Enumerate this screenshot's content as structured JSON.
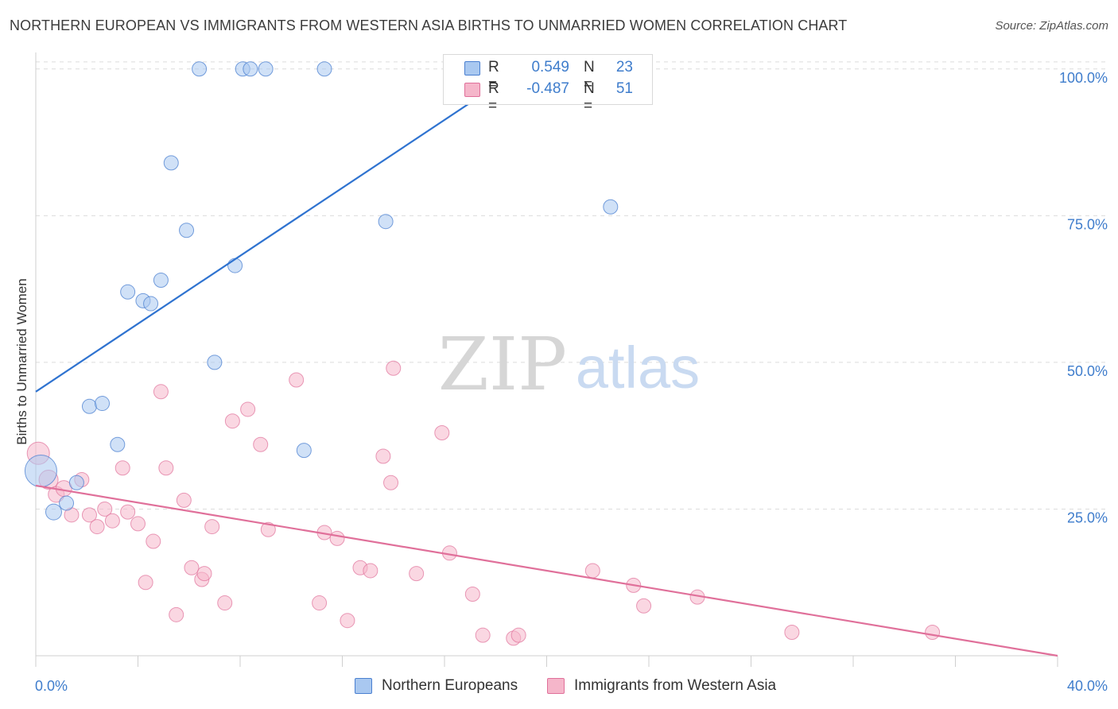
{
  "title": "NORTHERN EUROPEAN VS IMMIGRANTS FROM WESTERN ASIA BIRTHS TO UNMARRIED WOMEN CORRELATION CHART",
  "source": "Source: ZipAtlas.com",
  "watermark": {
    "zip": "ZIP",
    "atlas": "atlas"
  },
  "colors": {
    "blue": "#4a7fd0",
    "blue_fill": "#a9c8f0",
    "pink": "#e0709a",
    "pink_fill": "#f5b6ca",
    "value_text": "#3f7dcc"
  },
  "legend_top": {
    "rows": [
      {
        "r_label": "R =",
        "r_value": "0.549",
        "n_label": "N =",
        "n_value": "23"
      },
      {
        "r_label": "R =",
        "r_value": "-0.487",
        "n_label": "N =",
        "n_value": "51"
      }
    ]
  },
  "legend_bottom": [
    "Northern Europeans",
    "Immigrants from Western Asia"
  ],
  "chart_data": {
    "type": "scatter",
    "ylabel": "Births to Unmarried Women",
    "xlim": [
      0,
      40
    ],
    "ylim": [
      0,
      102
    ],
    "x_tick_labels": [
      "0.0%",
      "40.0%"
    ],
    "y_ticks": [
      25,
      50,
      75,
      100
    ],
    "y_tick_labels": [
      "25.0%",
      "50.0%",
      "75.0%",
      "100.0%"
    ],
    "grid": "horizontal dashed",
    "series": [
      {
        "name": "Northern Europeans",
        "color": "#4a7fd0",
        "trend": {
          "x": [
            0,
            19.0
          ],
          "y": [
            45,
            100
          ]
        },
        "points": [
          [
            0.2,
            31.5,
            20
          ],
          [
            0.7,
            24.5,
            10
          ],
          [
            1.2,
            26.0,
            9
          ],
          [
            1.6,
            29.5,
            9
          ],
          [
            2.1,
            42.5,
            9
          ],
          [
            2.6,
            43.0,
            9
          ],
          [
            3.2,
            36.0,
            9
          ],
          [
            3.6,
            62.0,
            9
          ],
          [
            4.2,
            60.5,
            9
          ],
          [
            4.5,
            60.0,
            9
          ],
          [
            4.9,
            64.0,
            9
          ],
          [
            5.3,
            84.0,
            9
          ],
          [
            5.9,
            72.5,
            9
          ],
          [
            6.4,
            100,
            9
          ],
          [
            7.0,
            50.0,
            9
          ],
          [
            7.8,
            66.5,
            9
          ],
          [
            8.1,
            100,
            9
          ],
          [
            8.4,
            100,
            9
          ],
          [
            9.0,
            100,
            9
          ],
          [
            10.5,
            35.0,
            9
          ],
          [
            11.3,
            100,
            9
          ],
          [
            13.7,
            74.0,
            9
          ],
          [
            22.5,
            76.5,
            9
          ]
        ]
      },
      {
        "name": "Immigrants from Western Asia",
        "color": "#e0709a",
        "trend": {
          "x": [
            0,
            40
          ],
          "y": [
            29,
            0
          ]
        },
        "points": [
          [
            0.1,
            34.5,
            14
          ],
          [
            0.5,
            30.0,
            12
          ],
          [
            0.8,
            27.5,
            10
          ],
          [
            1.1,
            28.5,
            10
          ],
          [
            1.4,
            24.0,
            9
          ],
          [
            1.8,
            30.0,
            9
          ],
          [
            2.1,
            24.0,
            9
          ],
          [
            2.4,
            22.0,
            9
          ],
          [
            2.7,
            25.0,
            9
          ],
          [
            3.0,
            23.0,
            9
          ],
          [
            3.4,
            32.0,
            9
          ],
          [
            3.6,
            24.5,
            9
          ],
          [
            4.0,
            22.5,
            9
          ],
          [
            4.3,
            12.5,
            9
          ],
          [
            4.6,
            19.5,
            9
          ],
          [
            4.9,
            45.0,
            9
          ],
          [
            5.1,
            32.0,
            9
          ],
          [
            5.5,
            7.0,
            9
          ],
          [
            5.8,
            26.5,
            9
          ],
          [
            6.1,
            15.0,
            9
          ],
          [
            6.5,
            13.0,
            9
          ],
          [
            6.6,
            14.0,
            9
          ],
          [
            6.9,
            22.0,
            9
          ],
          [
            7.4,
            9.0,
            9
          ],
          [
            7.7,
            40.0,
            9
          ],
          [
            8.3,
            42.0,
            9
          ],
          [
            8.8,
            36.0,
            9
          ],
          [
            9.1,
            21.5,
            9
          ],
          [
            10.2,
            47.0,
            9
          ],
          [
            11.1,
            9.0,
            9
          ],
          [
            11.3,
            21.0,
            9
          ],
          [
            11.8,
            20.0,
            9
          ],
          [
            12.2,
            6.0,
            9
          ],
          [
            12.7,
            15.0,
            9
          ],
          [
            13.1,
            14.5,
            9
          ],
          [
            13.6,
            34.0,
            9
          ],
          [
            13.9,
            29.5,
            9
          ],
          [
            14.0,
            49.0,
            9
          ],
          [
            14.9,
            14.0,
            9
          ],
          [
            15.9,
            38.0,
            9
          ],
          [
            16.2,
            17.5,
            9
          ],
          [
            17.1,
            10.5,
            9
          ],
          [
            17.5,
            3.5,
            9
          ],
          [
            18.7,
            3.0,
            9
          ],
          [
            18.9,
            3.5,
            9
          ],
          [
            21.8,
            14.5,
            9
          ],
          [
            23.4,
            12.0,
            9
          ],
          [
            23.8,
            8.5,
            9
          ],
          [
            25.9,
            10.0,
            9
          ],
          [
            29.6,
            4.0,
            9
          ],
          [
            35.1,
            4.0,
            9
          ]
        ]
      }
    ]
  }
}
